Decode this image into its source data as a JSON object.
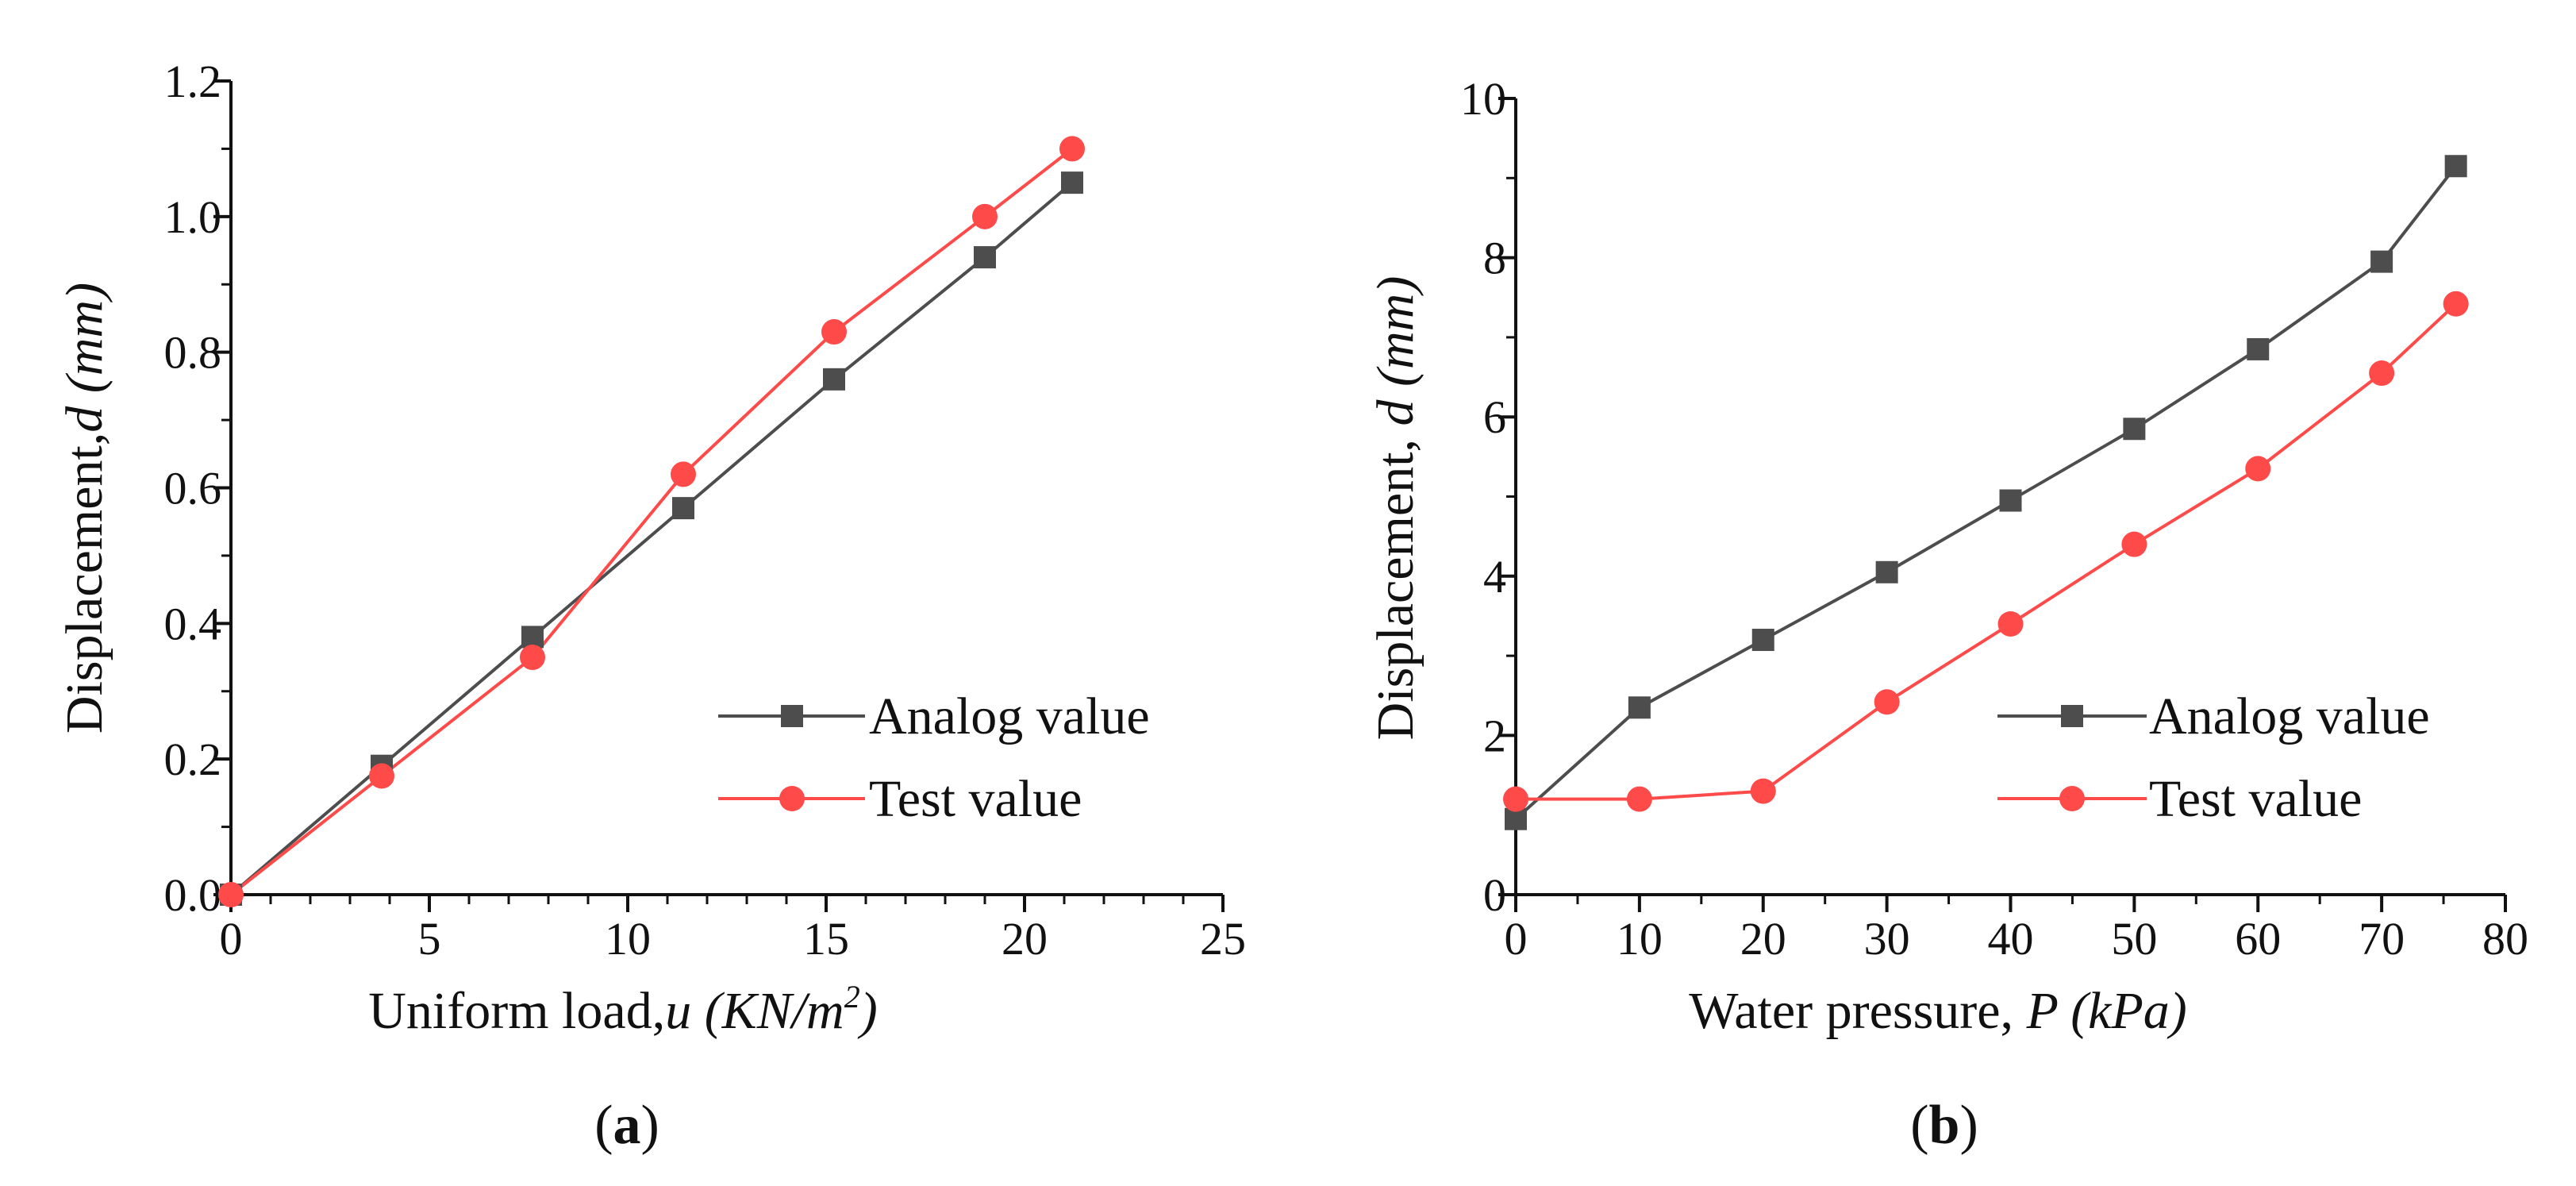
{
  "colors": {
    "analog": "#4d4d4d",
    "test": "#ff4a4a",
    "axis": "#111111"
  },
  "chart_data": [
    {
      "panel": "a",
      "panel_label": "a",
      "type": "line",
      "xlabel": "Uniform load,",
      "xlabel_var": "u",
      "xlabel_unit_pre": "(KN/m",
      "xlabel_unit_sup": "2",
      "xlabel_unit_post": ")",
      "ylabel": "Displacement,",
      "ylabel_var": "d",
      "ylabel_unit": "(mm)",
      "xlim": [
        0,
        25
      ],
      "ylim": [
        0,
        1.2
      ],
      "xticks": [
        0,
        5,
        10,
        15,
        20,
        25
      ],
      "yticks": [
        0.0,
        0.2,
        0.4,
        0.6,
        0.8,
        1.0,
        1.2
      ],
      "xtick_labels": [
        "0",
        "5",
        "10",
        "15",
        "20",
        "25"
      ],
      "ytick_labels": [
        "0.0",
        "0.2",
        "0.4",
        "0.6",
        "0.8",
        "1.0",
        "1.2"
      ],
      "legend_position": "bottom-right",
      "series": [
        {
          "name": "Analog value",
          "marker": "square",
          "color": "#4d4d4d",
          "x": [
            0,
            3.8,
            7.6,
            11.4,
            15.2,
            19.0,
            21.2
          ],
          "y": [
            0.0,
            0.19,
            0.38,
            0.57,
            0.76,
            0.94,
            1.05
          ]
        },
        {
          "name": "Test value",
          "marker": "circle",
          "color": "#ff4a4a",
          "x": [
            0,
            3.8,
            7.6,
            11.4,
            15.2,
            19.0,
            21.2
          ],
          "y": [
            0.0,
            0.175,
            0.35,
            0.62,
            0.83,
            1.0,
            1.1
          ]
        }
      ]
    },
    {
      "panel": "b",
      "panel_label": "b",
      "type": "line",
      "xlabel": "Water pressure,",
      "xlabel_var": "P",
      "xlabel_unit_pre": "(kPa)",
      "xlabel_unit_sup": "",
      "xlabel_unit_post": "",
      "ylabel": "Displacement,",
      "ylabel_var": "d",
      "ylabel_unit": "(mm)",
      "xlim": [
        0,
        80
      ],
      "ylim": [
        0,
        10
      ],
      "xticks": [
        0,
        10,
        20,
        30,
        40,
        50,
        60,
        70,
        80
      ],
      "yticks": [
        0,
        2,
        4,
        6,
        8,
        10
      ],
      "xtick_labels": [
        "0",
        "10",
        "20",
        "30",
        "40",
        "50",
        "60",
        "70",
        "80"
      ],
      "ytick_labels": [
        "0",
        "2",
        "4",
        "6",
        "8",
        "10"
      ],
      "legend_position": "bottom-right",
      "series": [
        {
          "name": "Analog value",
          "marker": "square",
          "color": "#4d4d4d",
          "x": [
            0,
            10,
            20,
            30,
            40,
            50,
            60,
            70,
            76
          ],
          "y": [
            0.95,
            2.35,
            3.2,
            4.05,
            4.95,
            5.85,
            6.85,
            7.95,
            9.15
          ]
        },
        {
          "name": "Test value",
          "marker": "circle",
          "color": "#ff4a4a",
          "x": [
            0,
            10,
            20,
            30,
            40,
            50,
            60,
            70,
            76
          ],
          "y": [
            1.2,
            1.2,
            1.3,
            2.42,
            3.4,
            4.4,
            5.35,
            6.55,
            7.42
          ]
        }
      ]
    }
  ]
}
